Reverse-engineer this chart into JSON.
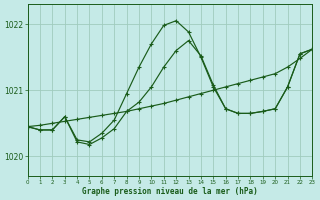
{
  "title": "Graphe pression niveau de la mer (hPa)",
  "bg_color": "#c5eae7",
  "grid_color": "#a0ccbe",
  "line_color": "#1a5c1a",
  "xlim": [
    0,
    23
  ],
  "ylim": [
    1019.7,
    1022.3
  ],
  "yticks": [
    1020,
    1021,
    1022
  ],
  "xticks": [
    0,
    1,
    2,
    3,
    4,
    5,
    6,
    7,
    8,
    9,
    10,
    11,
    12,
    13,
    14,
    15,
    16,
    17,
    18,
    19,
    20,
    21,
    22,
    23
  ],
  "hours": [
    0,
    1,
    2,
    3,
    4,
    5,
    6,
    7,
    8,
    9,
    10,
    11,
    12,
    13,
    14,
    15,
    16,
    17,
    18,
    19,
    20,
    21,
    22,
    23
  ],
  "curve_peaked": [
    1020.45,
    1020.4,
    1020.4,
    1020.6,
    1020.25,
    1020.22,
    1020.35,
    1020.55,
    1020.95,
    1021.35,
    1021.7,
    1021.98,
    1022.05,
    1021.88,
    1021.5,
    1021.05,
    1020.72,
    1020.65,
    1020.65,
    1020.68,
    1020.72,
    1021.05,
    1021.55,
    1021.62
  ],
  "curve_wavy": [
    1020.45,
    1020.4,
    1020.4,
    1020.6,
    1020.22,
    1020.18,
    1020.28,
    1020.42,
    1020.68,
    1020.82,
    1021.05,
    1021.35,
    1021.6,
    1021.75,
    1021.52,
    1021.08,
    1020.72,
    1020.65,
    1020.65,
    1020.68,
    1020.72,
    1021.05,
    1021.55,
    1021.62
  ],
  "curve_trend": [
    1020.45,
    1020.47,
    1020.5,
    1020.53,
    1020.56,
    1020.59,
    1020.62,
    1020.65,
    1020.68,
    1020.72,
    1020.76,
    1020.8,
    1020.85,
    1020.9,
    1020.95,
    1021.0,
    1021.05,
    1021.1,
    1021.15,
    1021.2,
    1021.25,
    1021.35,
    1021.48,
    1021.62
  ]
}
